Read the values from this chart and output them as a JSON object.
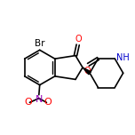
{
  "background_color": "#ffffff",
  "figsize": [
    1.52,
    1.52
  ],
  "dpi": 100,
  "bond_color": "#000000",
  "bond_width": 1.2,
  "font_size": 7,
  "atom_colors": {
    "Br": "#000000",
    "N": "#0000cc",
    "O": "#ff0000",
    "C": "#000000",
    "H": "#000000"
  }
}
